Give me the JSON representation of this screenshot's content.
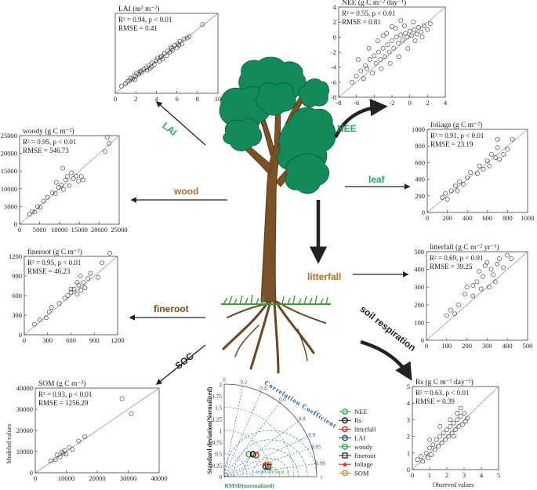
{
  "colors": {
    "canopy": "#138a5a",
    "trunk": "#7a5226",
    "grass": "#3a9a3a",
    "arrow": "#222222",
    "label_green": "#22aa66",
    "label_brown": "#b86a2a",
    "label_dark": "#7a4a1e",
    "label_black": "#222222",
    "taylor_blue": "#2255aa",
    "taylor_green": "#2a9a5a"
  },
  "flux_labels": {
    "lai": "LAI",
    "nee": "NEE",
    "wood": "wood",
    "leaf": "leaf",
    "litterfall": "litterfall",
    "fineroot": "fineroot",
    "soc": "SOC",
    "soil_respiration": "soil respiration"
  },
  "shared_axis_labels": {
    "modeled": "Modeled values",
    "observed": "Observed values"
  },
  "chart_data": [
    {
      "id": "lai",
      "type": "scatter",
      "title": "LAI (m² m⁻²)",
      "stats": [
        "R² = 0.94, p < 0.01",
        "RMSE = 0.41"
      ],
      "xlim": [
        0,
        10
      ],
      "ylim": [
        0,
        10
      ],
      "xticks": [
        "0",
        "2",
        "4",
        "6",
        "8",
        "10"
      ],
      "yticks": [],
      "points": [
        [
          0.6,
          0.9
        ],
        [
          1,
          1.2
        ],
        [
          1.2,
          1.5
        ],
        [
          1.4,
          1.6
        ],
        [
          1.5,
          1.9
        ],
        [
          1.7,
          1.8
        ],
        [
          1.8,
          2.2
        ],
        [
          2,
          2.1
        ],
        [
          2.1,
          2.5
        ],
        [
          2.3,
          2.4
        ],
        [
          2.5,
          2.8
        ],
        [
          2.6,
          2.6
        ],
        [
          2.8,
          3
        ],
        [
          3,
          3.2
        ],
        [
          3.1,
          2.9
        ],
        [
          3.3,
          3.5
        ],
        [
          3.5,
          3.3
        ],
        [
          3.6,
          3.8
        ],
        [
          3.8,
          3.6
        ],
        [
          4,
          4.1
        ],
        [
          4.1,
          4.4
        ],
        [
          4.3,
          4
        ],
        [
          4.5,
          4.6
        ],
        [
          4.6,
          4.3
        ],
        [
          4.8,
          5
        ],
        [
          5,
          4.7
        ],
        [
          5.1,
          5.3
        ],
        [
          5.3,
          5.1
        ],
        [
          5.5,
          5.6
        ],
        [
          5.6,
          5.4
        ],
        [
          5.8,
          6
        ],
        [
          6,
          5.7
        ],
        [
          6.1,
          6.2
        ],
        [
          6.3,
          6.5
        ],
        [
          6.5,
          6.2
        ],
        [
          6.7,
          6.8
        ],
        [
          7,
          6.9
        ],
        [
          7.2,
          7.1
        ],
        [
          1.9,
          1.7
        ],
        [
          2.4,
          2.7
        ],
        [
          3.4,
          3.1
        ],
        [
          4.4,
          4.5
        ],
        [
          5.4,
          5.8
        ],
        [
          6.2,
          6.0
        ],
        [
          8.5,
          8.6
        ]
      ]
    },
    {
      "id": "nee",
      "type": "scatter",
      "title": "NEE (g C m⁻² day⁻¹)",
      "stats": [
        "R² = 0.55, p < 0.01",
        "RMSE = 0.81"
      ],
      "xlim": [
        -8,
        4
      ],
      "ylim": [
        -8,
        4
      ],
      "xticks": [
        "-8",
        "-6",
        "-4",
        "-2",
        "0",
        "2",
        "4"
      ],
      "yticks": [
        "-8",
        "-6",
        "-4",
        "-2",
        "0",
        "2",
        "4"
      ],
      "points": [
        [
          -6.5,
          -6
        ],
        [
          -6,
          -5.2
        ],
        [
          -5.5,
          -4.5
        ],
        [
          -5.2,
          -5.5
        ],
        [
          -5,
          -3.8
        ],
        [
          -4.8,
          -4.2
        ],
        [
          -4.5,
          -3
        ],
        [
          -4.2,
          -4.8
        ],
        [
          -4,
          -2.5
        ],
        [
          -3.8,
          -3.5
        ],
        [
          -3.5,
          -2
        ],
        [
          -3.3,
          -3
        ],
        [
          -3,
          -1.5
        ],
        [
          -2.8,
          -2.6
        ],
        [
          -2.5,
          -1
        ],
        [
          -2.3,
          -2
        ],
        [
          -2,
          -0.5
        ],
        [
          -1.8,
          -1.5
        ],
        [
          -1.5,
          0
        ],
        [
          -1.3,
          -0.8
        ],
        [
          -1,
          0.3
        ],
        [
          -0.8,
          -0.4
        ],
        [
          -0.5,
          0.5
        ],
        [
          -0.3,
          0
        ],
        [
          0,
          0.8
        ],
        [
          0.2,
          0.2
        ],
        [
          0.5,
          1
        ],
        [
          0.8,
          0.4
        ],
        [
          1,
          1.3
        ],
        [
          1.3,
          0.7
        ],
        [
          1.6,
          1.5
        ],
        [
          2,
          1
        ],
        [
          2.3,
          1.8
        ],
        [
          -3.6,
          -0.5
        ],
        [
          -2.6,
          0.5
        ],
        [
          -1.6,
          1.2
        ],
        [
          -0.6,
          1.5
        ],
        [
          0.4,
          2
        ],
        [
          -4.6,
          -1.5
        ],
        [
          -2.2,
          -3.5
        ],
        [
          -1.2,
          -2.6
        ],
        [
          -0.2,
          -1.5
        ],
        [
          0.6,
          -0.5
        ],
        [
          1.4,
          0
        ],
        [
          -3,
          0.2
        ],
        [
          -2,
          1.4
        ],
        [
          -1,
          2.2
        ],
        [
          -5.8,
          -3
        ],
        [
          -3.2,
          -4.2
        ]
      ]
    },
    {
      "id": "woody",
      "type": "scatter",
      "title": "woody (g C m⁻²)",
      "stats": [
        "R² = 0.95, p < 0.01",
        "RMSE = 546.73"
      ],
      "xlim": [
        0,
        25000
      ],
      "ylim": [
        0,
        25000
      ],
      "xticks": [
        "0",
        "5000",
        "10000",
        "15000",
        "20000",
        "25000"
      ],
      "yticks": [
        "0",
        "5000",
        "10000",
        "15000",
        "20000",
        "25000"
      ],
      "points": [
        [
          2500,
          2800
        ],
        [
          3200,
          3600
        ],
        [
          3800,
          3400
        ],
        [
          4500,
          5000
        ],
        [
          5200,
          4800
        ],
        [
          6000,
          6500
        ],
        [
          7000,
          7600
        ],
        [
          8200,
          8900
        ],
        [
          9000,
          8600
        ],
        [
          9800,
          10400
        ],
        [
          10500,
          11000
        ],
        [
          11000,
          9800
        ],
        [
          11500,
          12500
        ],
        [
          12000,
          13500
        ],
        [
          12500,
          10900
        ],
        [
          13000,
          14500
        ],
        [
          13500,
          12800
        ],
        [
          14200,
          13600
        ],
        [
          14800,
          12200
        ],
        [
          15500,
          13500
        ],
        [
          10800,
          15800
        ],
        [
          9200,
          11800
        ],
        [
          16000,
          12500
        ],
        [
          22000,
          24500
        ],
        [
          22500,
          22800
        ],
        [
          21500,
          20500
        ]
      ]
    },
    {
      "id": "foliage",
      "type": "scatter",
      "title": "foliage (g C m⁻²)",
      "stats": [
        "R² = 0.91, p < 0.01",
        "RMSE = 23.19"
      ],
      "xlim": [
        0,
        1000
      ],
      "ylim": [
        0,
        1000
      ],
      "xticks": [
        "0",
        "200",
        "400",
        "600",
        "800",
        "1000"
      ],
      "yticks": [
        "0",
        "200",
        "400",
        "600",
        "800",
        "1000"
      ],
      "points": [
        [
          150,
          180
        ],
        [
          180,
          230
        ],
        [
          200,
          160
        ],
        [
          240,
          260
        ],
        [
          280,
          320
        ],
        [
          300,
          260
        ],
        [
          320,
          370
        ],
        [
          360,
          340
        ],
        [
          400,
          420
        ],
        [
          430,
          480
        ],
        [
          500,
          470
        ],
        [
          520,
          560
        ],
        [
          560,
          520
        ],
        [
          600,
          620
        ],
        [
          640,
          700
        ],
        [
          680,
          660
        ],
        [
          700,
          780
        ],
        [
          720,
          640
        ],
        [
          760,
          700
        ],
        [
          800,
          760
        ],
        [
          850,
          880
        ],
        [
          700,
          880
        ],
        [
          620,
          560
        ]
      ]
    },
    {
      "id": "fineroot",
      "type": "scatter",
      "title": "fineroot (g C m⁻²)",
      "stats": [
        "R² = 0.95, p < 0.01",
        "RMSE = 46.23"
      ],
      "xlim": [
        0,
        1200
      ],
      "ylim": [
        0,
        1200
      ],
      "xticks": [
        "0",
        "300",
        "600",
        "900",
        "1200"
      ],
      "yticks": [
        "0",
        "300",
        "600",
        "900",
        "1200"
      ],
      "points": [
        [
          130,
          160
        ],
        [
          200,
          230
        ],
        [
          280,
          260
        ],
        [
          320,
          350
        ],
        [
          350,
          420
        ],
        [
          450,
          480
        ],
        [
          520,
          560
        ],
        [
          560,
          600
        ],
        [
          600,
          650
        ],
        [
          640,
          700
        ],
        [
          680,
          620
        ],
        [
          700,
          760
        ],
        [
          730,
          680
        ],
        [
          760,
          800
        ],
        [
          780,
          720
        ],
        [
          820,
          860
        ],
        [
          600,
          700
        ],
        [
          680,
          800
        ],
        [
          720,
          900
        ],
        [
          850,
          940
        ],
        [
          1000,
          1100
        ],
        [
          1100,
          1250
        ],
        [
          950,
          880
        ]
      ]
    },
    {
      "id": "litterfall",
      "type": "scatter",
      "title": "litterfall (g C m⁻² yr⁻¹)",
      "stats": [
        "R² = 0.69, p < 0.01",
        "RMSE = 39.25"
      ],
      "xlim": [
        0,
        500
      ],
      "ylim": [
        0,
        500
      ],
      "xticks": [
        "0",
        "100",
        "200",
        "300",
        "400",
        "500"
      ],
      "yticks": [
        "0",
        "100",
        "200",
        "300",
        "400",
        "500"
      ],
      "points": [
        [
          100,
          140
        ],
        [
          120,
          170
        ],
        [
          140,
          150
        ],
        [
          160,
          200
        ],
        [
          190,
          260
        ],
        [
          200,
          300
        ],
        [
          230,
          250
        ],
        [
          250,
          330
        ],
        [
          260,
          390
        ],
        [
          280,
          360
        ],
        [
          290,
          420
        ],
        [
          300,
          440
        ],
        [
          320,
          400
        ],
        [
          330,
          370
        ],
        [
          350,
          430
        ],
        [
          360,
          460
        ],
        [
          380,
          410
        ],
        [
          400,
          480
        ],
        [
          420,
          460
        ],
        [
          310,
          300
        ],
        [
          270,
          290
        ],
        [
          230,
          310
        ],
        [
          340,
          330
        ]
      ]
    },
    {
      "id": "som",
      "type": "scatter",
      "title": "SOM (g C m⁻²)",
      "stats": [
        "R² = 0.93, p < 0.01",
        "RMSE = 1256.29"
      ],
      "xlim": [
        0,
        40000
      ],
      "ylim": [
        0,
        40000
      ],
      "xticks": [
        "0",
        "10000",
        "20000",
        "30000",
        "40000"
      ],
      "yticks": [
        "0",
        "10000",
        "20000",
        "30000",
        "40000"
      ],
      "points": [
        [
          5000,
          5600
        ],
        [
          6500,
          6200
        ],
        [
          7000,
          8500
        ],
        [
          8000,
          7500
        ],
        [
          8500,
          9800
        ],
        [
          9000,
          9200
        ],
        [
          9500,
          10500
        ],
        [
          10000,
          8800
        ],
        [
          11000,
          12000
        ],
        [
          12000,
          11000
        ],
        [
          14000,
          15000
        ],
        [
          16000,
          17000
        ],
        [
          28000,
          35000
        ],
        [
          31000,
          28000
        ]
      ]
    },
    {
      "id": "rs",
      "type": "scatter",
      "title": "Rs (g C m⁻² day⁻¹)",
      "stats": [
        "R² = 0.63, p < 0.01",
        "RMSE = 0.39"
      ],
      "xlim": [
        0,
        5
      ],
      "ylim": [
        0,
        5
      ],
      "xticks": [
        "0",
        "1",
        "2",
        "3",
        "4",
        "5"
      ],
      "yticks": [
        "0",
        "1",
        "2",
        "3",
        "4",
        "5"
      ],
      "points": [
        [
          0.3,
          0.6
        ],
        [
          0.5,
          0.8
        ],
        [
          0.6,
          0.5
        ],
        [
          0.8,
          1.0
        ],
        [
          0.9,
          0.7
        ],
        [
          1.0,
          1.3
        ],
        [
          1.1,
          0.9
        ],
        [
          1.2,
          1.5
        ],
        [
          1.3,
          1.2
        ],
        [
          1.4,
          1.8
        ],
        [
          1.5,
          1.4
        ],
        [
          1.6,
          2.0
        ],
        [
          1.7,
          1.6
        ],
        [
          1.8,
          2.2
        ],
        [
          1.9,
          1.8
        ],
        [
          2.0,
          2.4
        ],
        [
          2.1,
          2.0
        ],
        [
          2.2,
          2.6
        ],
        [
          2.3,
          2.2
        ],
        [
          2.4,
          2.8
        ],
        [
          2.5,
          2.4
        ],
        [
          2.6,
          3.0
        ],
        [
          2.7,
          2.6
        ],
        [
          2.8,
          3.2
        ],
        [
          2.9,
          2.7
        ],
        [
          3.0,
          3.4
        ],
        [
          3.1,
          2.9
        ],
        [
          3.2,
          3.1
        ],
        [
          2.8,
          3.7
        ],
        [
          2.6,
          3.4
        ],
        [
          2.4,
          2.0
        ],
        [
          1.0,
          1.8
        ],
        [
          1.6,
          2.6
        ],
        [
          2.2,
          3.0
        ]
      ]
    },
    {
      "id": "taylor",
      "type": "taylor",
      "ylabel": "Standard deviation(Normalized)",
      "xlabel": "RMSD(normalized)",
      "arc_label": "Correlation Coefficient",
      "correlation_ticks": [
        "0",
        "0.2",
        "0.4",
        "0.6",
        "0.8",
        "0.9",
        "0.95",
        "0.99",
        "1"
      ],
      "std_ticks": [
        "0",
        "0.25",
        "0.5",
        "0.75",
        "1",
        "1.25",
        "1.5",
        "1.75",
        "2"
      ],
      "rmsd_ticks": [
        "0.2",
        "0.4",
        "0.6",
        "0.8",
        "1"
      ],
      "legend": [
        {
          "name": "NEE",
          "color": "#2aaa44",
          "marker": "circle"
        },
        {
          "name": "Rs",
          "color": "#111111",
          "marker": "circle"
        },
        {
          "name": "litterfall",
          "color": "#dd2222",
          "marker": "circle"
        },
        {
          "name": "LAI",
          "color": "#2233aa",
          "marker": "circle"
        },
        {
          "name": "woody",
          "color": "#22aa33",
          "marker": "circle"
        },
        {
          "name": "fineroot",
          "color": "#222222",
          "marker": "square"
        },
        {
          "name": "foliage",
          "color": "#dd2222",
          "marker": "star"
        },
        {
          "name": "SOM",
          "color": "#dd8822",
          "marker": "circle"
        }
      ],
      "points": [
        {
          "name": "NEE",
          "std": 0.72,
          "corr": 0.74
        },
        {
          "name": "Rs",
          "std": 0.79,
          "corr": 0.79
        },
        {
          "name": "litterfall",
          "std": 0.83,
          "corr": 0.83
        },
        {
          "name": "LAI",
          "std": 0.92,
          "corr": 0.97
        },
        {
          "name": "woody",
          "std": 0.98,
          "corr": 0.975
        },
        {
          "name": "fineroot",
          "std": 0.97,
          "corr": 0.975
        },
        {
          "name": "foliage",
          "std": 0.93,
          "corr": 0.955
        },
        {
          "name": "SOM",
          "std": 1.0,
          "corr": 0.965
        }
      ]
    }
  ]
}
